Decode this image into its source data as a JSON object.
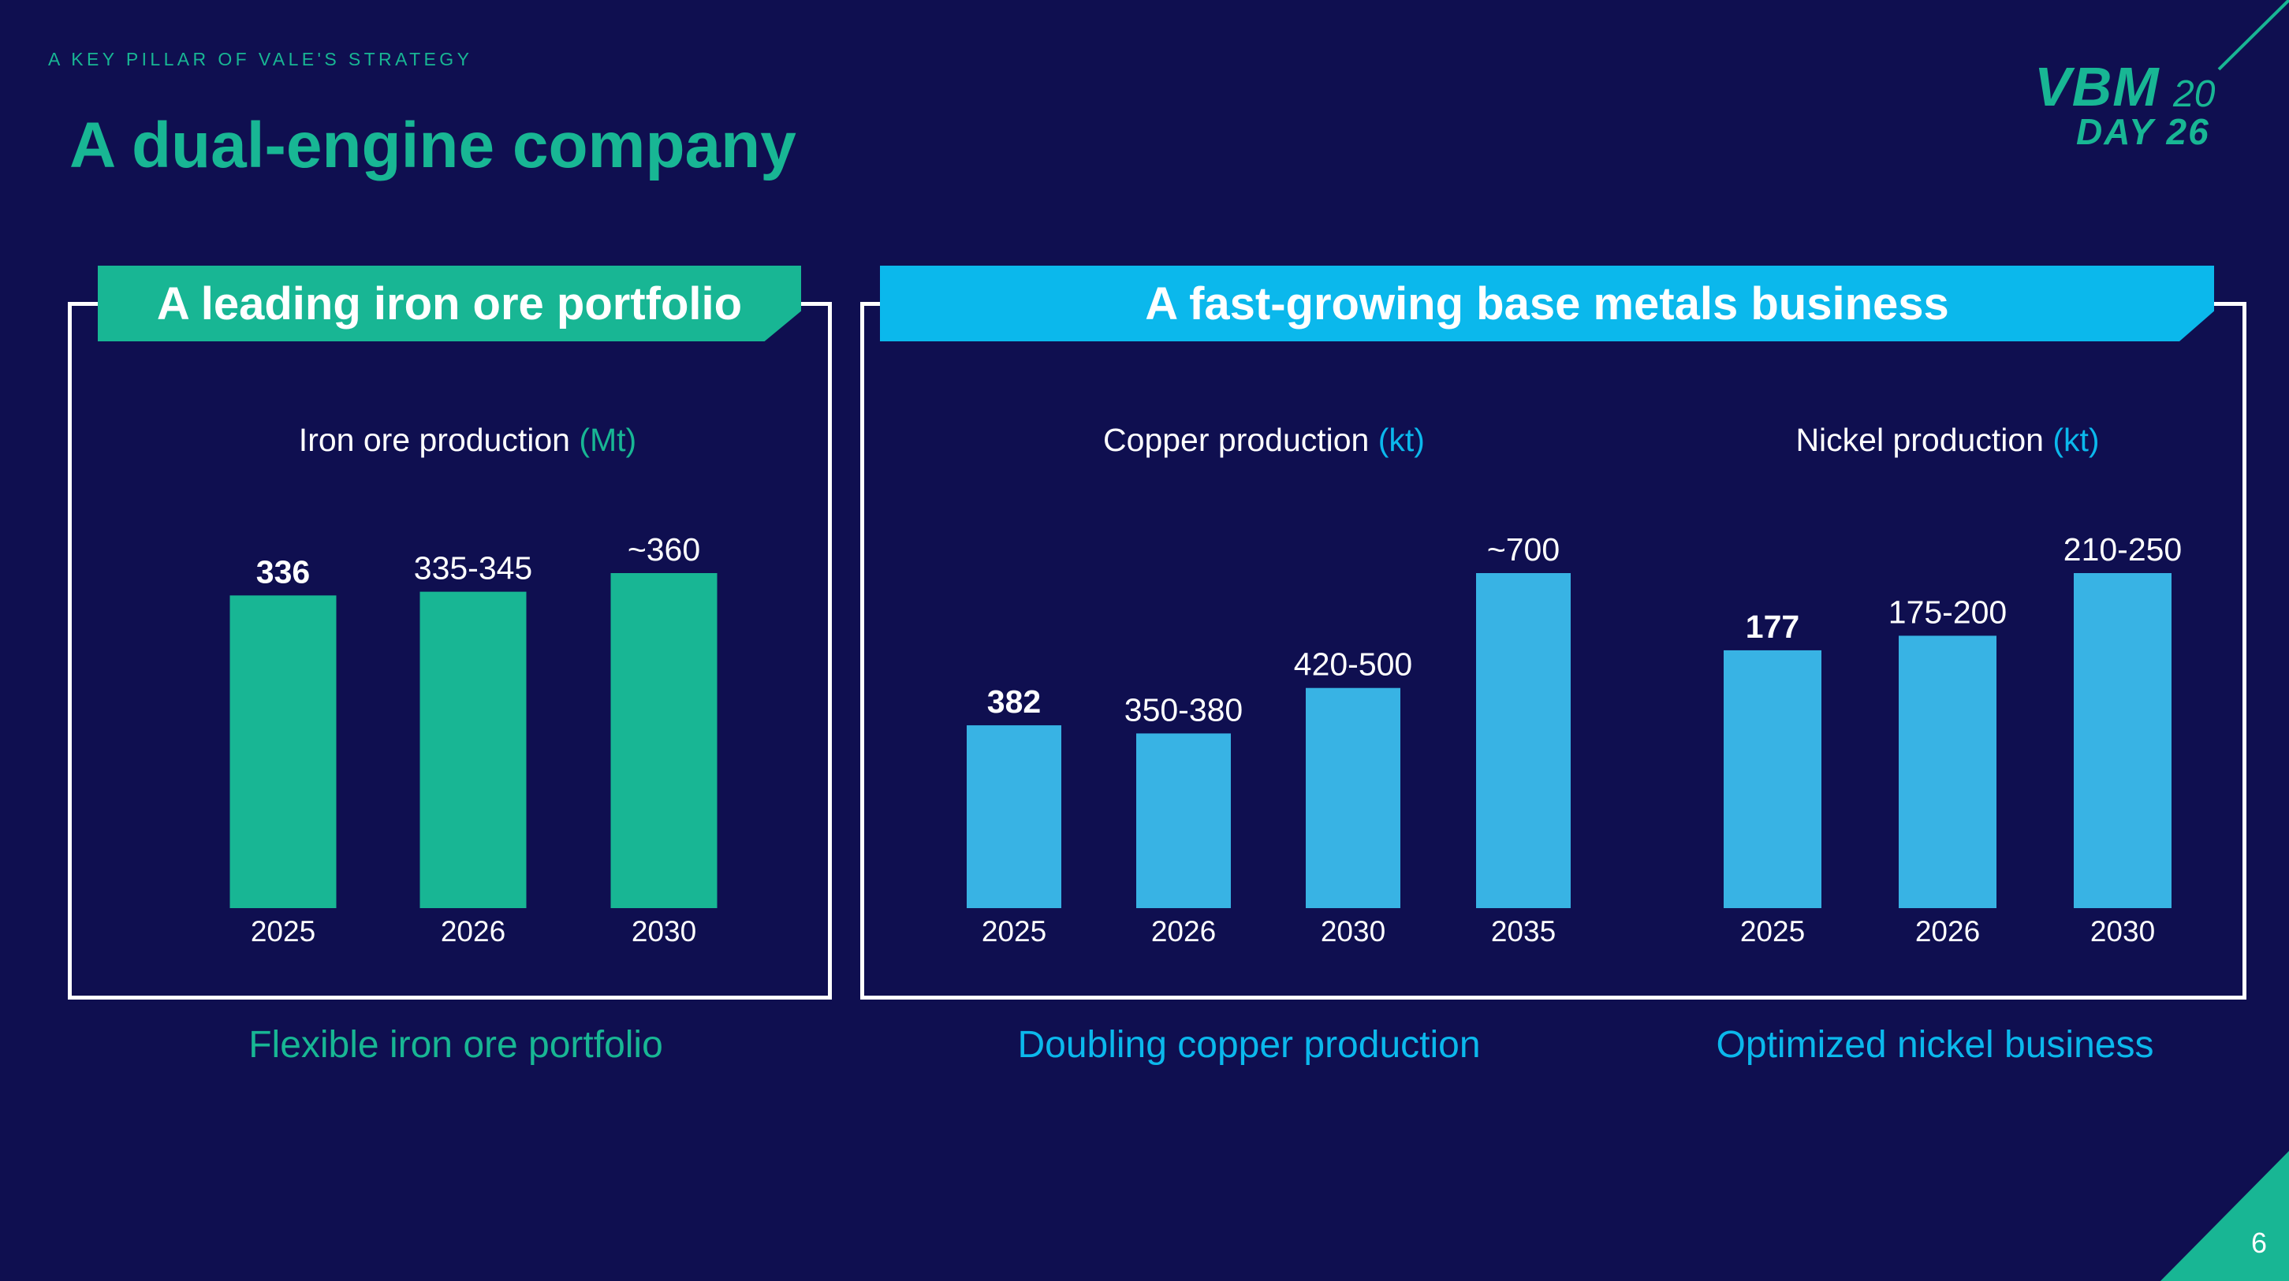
{
  "header": {
    "kicker": "A KEY PILLAR OF VALE'S STRATEGY",
    "title": "A dual-engine company"
  },
  "logo": {
    "brand": "VBM",
    "year_a": "20",
    "event": "DAY",
    "year_b": "26"
  },
  "page_number": "6",
  "colors": {
    "background": "#0f0f50",
    "green": "#18b694",
    "blue": "#0bb8ec",
    "bar_blue": "#38b3e4",
    "white": "#ffffff"
  },
  "panels": {
    "iron": {
      "banner": "A leading iron ore portfolio",
      "caption": "Flexible iron ore portfolio"
    },
    "base": {
      "banner": "A fast-growing base metals business"
    },
    "copper": {
      "caption": "Doubling copper production"
    },
    "nickel": {
      "caption": "Optimized nickel business"
    }
  },
  "chart_data": [
    {
      "id": "iron",
      "type": "bar",
      "title": "Iron ore production",
      "unit": "(Mt)",
      "categories": [
        "2025",
        "2026",
        "2030"
      ],
      "values": [
        336,
        340,
        360
      ],
      "labels": [
        "336",
        "335-345",
        "~360"
      ],
      "bold": [
        true,
        false,
        false
      ],
      "ylim": [
        0,
        360
      ],
      "color": "#18b694",
      "unit_color": "#18b694"
    },
    {
      "id": "copper",
      "type": "bar",
      "title": "Copper production",
      "unit": "(kt)",
      "categories": [
        "2025",
        "2026",
        "2030",
        "2035"
      ],
      "values": [
        382,
        365,
        460,
        700
      ],
      "labels": [
        "382",
        "350-380",
        "420-500",
        "~700"
      ],
      "bold": [
        true,
        false,
        false,
        false
      ],
      "ylim": [
        0,
        700
      ],
      "color": "#38b3e4",
      "unit_color": "#0bb8ec"
    },
    {
      "id": "nickel",
      "type": "bar",
      "title": "Nickel production",
      "unit": "(kt)",
      "categories": [
        "2025",
        "2026",
        "2030"
      ],
      "values": [
        177,
        187,
        230
      ],
      "labels": [
        "177",
        "175-200",
        "210-250"
      ],
      "bold": [
        true,
        false,
        false
      ],
      "ylim": [
        0,
        230
      ],
      "color": "#38b3e4",
      "unit_color": "#0bb8ec"
    }
  ]
}
